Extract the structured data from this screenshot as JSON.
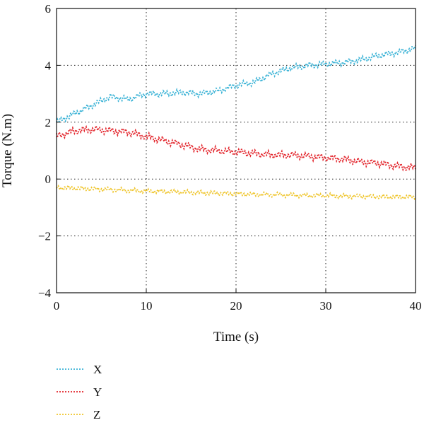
{
  "chart_data": {
    "type": "line",
    "title": "",
    "xlabel": "Time (s)",
    "ylabel": "Torque (N.m)",
    "xlim": [
      0,
      40
    ],
    "ylim": [
      -4,
      6
    ],
    "xticks": [
      0,
      10,
      20,
      30,
      40
    ],
    "yticks": [
      -4,
      -2,
      0,
      2,
      4,
      6
    ],
    "xtick_labels": [
      "0",
      "10",
      "20",
      "30",
      "40"
    ],
    "ytick_labels": [
      "−4",
      "−2",
      "0",
      "2",
      "4",
      "6"
    ],
    "grid": true,
    "legend_position": "below-left",
    "x": [
      0,
      2,
      4,
      6,
      8,
      10,
      12,
      14,
      16,
      18,
      20,
      22,
      24,
      26,
      28,
      30,
      32,
      34,
      36,
      38,
      40
    ],
    "series": [
      {
        "name": "X",
        "color": "#3bb3d6",
        "style": "dotted",
        "values": [
          2.0,
          2.3,
          2.6,
          2.9,
          2.8,
          3.0,
          3.0,
          3.05,
          3.0,
          3.1,
          3.3,
          3.4,
          3.7,
          3.9,
          4.0,
          4.05,
          4.1,
          4.2,
          4.35,
          4.45,
          4.6
        ]
      },
      {
        "name": "Y",
        "color": "#e3262d",
        "style": "dotted",
        "values": [
          1.5,
          1.7,
          1.75,
          1.7,
          1.65,
          1.5,
          1.35,
          1.2,
          1.05,
          1.0,
          0.95,
          0.9,
          0.85,
          0.85,
          0.8,
          0.75,
          0.7,
          0.6,
          0.55,
          0.45,
          0.4
        ]
      },
      {
        "name": "Z",
        "color": "#efc52b",
        "style": "dotted",
        "values": [
          -0.3,
          -0.32,
          -0.35,
          -0.37,
          -0.4,
          -0.42,
          -0.44,
          -0.46,
          -0.48,
          -0.5,
          -0.52,
          -0.54,
          -0.55,
          -0.56,
          -0.58,
          -0.58,
          -0.6,
          -0.61,
          -0.62,
          -0.63,
          -0.63
        ]
      }
    ]
  }
}
